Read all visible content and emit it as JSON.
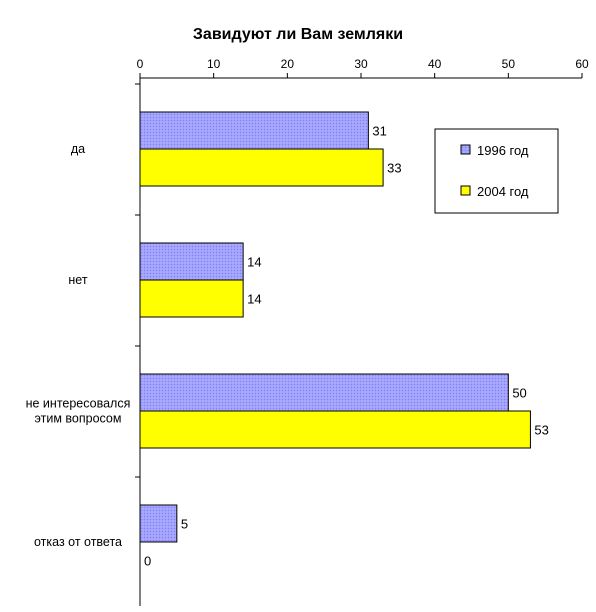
{
  "chart_data": {
    "type": "bar",
    "orientation": "horizontal",
    "title": "Завидуют ли Вам земляки",
    "xlim": [
      0,
      60
    ],
    "x_ticks": [
      0,
      10,
      20,
      30,
      40,
      50,
      60
    ],
    "x_axis_position": "top",
    "grid": false,
    "legend_position": "right",
    "categories": [
      [
        "да"
      ],
      [
        "нет"
      ],
      [
        "не интересовался",
        "этим вопросом"
      ],
      [
        "отказ от ответа"
      ]
    ],
    "series": [
      {
        "name": "1996 год",
        "values": [
          31,
          14,
          50,
          5
        ],
        "color": "#9999ff",
        "pattern": "dotted"
      },
      {
        "name": "2004 год",
        "values": [
          33,
          14,
          53,
          0
        ],
        "color": "#ffff00",
        "pattern": "solid"
      }
    ]
  }
}
